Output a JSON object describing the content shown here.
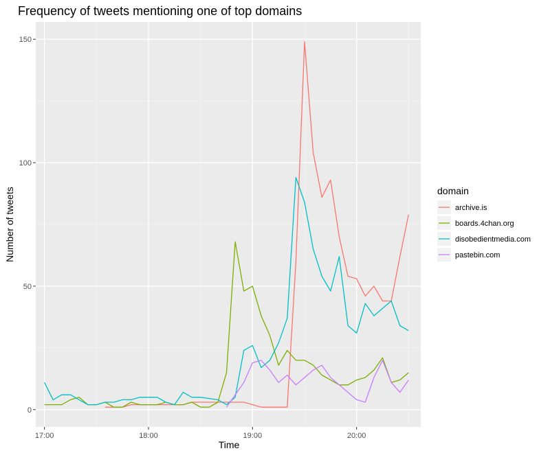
{
  "chart_data": {
    "type": "line",
    "title": "Frequency of tweets mentioning one of top domains",
    "xlabel": "Time",
    "ylabel": "Number of tweets",
    "x_ticks": [
      {
        "label": "17:00",
        "value": 0
      },
      {
        "label": "18:00",
        "value": 60
      },
      {
        "label": "19:00",
        "value": 120
      },
      {
        "label": "20:00",
        "value": 180
      }
    ],
    "y_ticks": [
      0,
      50,
      100,
      150
    ],
    "xlim": [
      -5,
      217
    ],
    "ylim": [
      -7,
      157
    ],
    "grid": true,
    "background": "#ebebeb",
    "legend": {
      "title": "domain",
      "placement": "right"
    },
    "series": [
      {
        "name": "archive.is",
        "color": "#f8766d",
        "x": [
          35,
          40,
          45,
          50,
          55,
          60,
          65,
          70,
          75,
          80,
          85,
          90,
          95,
          100,
          105,
          110,
          115,
          120,
          125,
          130,
          135,
          140,
          145,
          150,
          155,
          160,
          165,
          170,
          175,
          180,
          185,
          190,
          195,
          200,
          205,
          210
        ],
        "y": [
          1,
          1,
          1,
          2,
          2,
          2,
          2,
          2,
          2,
          2,
          3,
          3,
          3,
          3,
          3,
          3,
          3,
          2,
          1,
          1,
          1,
          1,
          60,
          149,
          104,
          86,
          93,
          70,
          54,
          53,
          46,
          50,
          44,
          44,
          62,
          79
        ]
      },
      {
        "name": "boards.4chan.org",
        "color": "#7cae00",
        "x": [
          0,
          5,
          10,
          15,
          20,
          25,
          30,
          35,
          40,
          45,
          50,
          55,
          60,
          65,
          70,
          75,
          80,
          85,
          90,
          95,
          100,
          105,
          110,
          115,
          120,
          125,
          130,
          135,
          140,
          145,
          150,
          155,
          160,
          165,
          170,
          175,
          180,
          185,
          190,
          195,
          200,
          205,
          210
        ],
        "y": [
          2,
          2,
          2,
          4,
          5,
          2,
          2,
          3,
          1,
          1,
          3,
          2,
          2,
          2,
          3,
          2,
          2,
          3,
          1,
          1,
          3,
          15,
          68,
          48,
          50,
          38,
          30,
          18,
          24,
          20,
          20,
          18,
          14,
          12,
          10,
          10,
          12,
          13,
          16,
          21,
          11,
          12,
          15
        ]
      },
      {
        "name": "disobedientmedia.com",
        "color": "#00bfc4",
        "x": [
          0,
          5,
          10,
          15,
          20,
          25,
          30,
          35,
          40,
          45,
          50,
          55,
          60,
          65,
          70,
          75,
          80,
          85,
          90,
          95,
          100,
          105,
          110,
          115,
          120,
          125,
          130,
          135,
          140,
          145,
          150,
          155,
          160,
          165,
          170,
          175,
          180,
          185,
          190,
          195,
          200,
          205,
          210
        ],
        "y": [
          11,
          4,
          6,
          6,
          4,
          2,
          2,
          3,
          3,
          4,
          4,
          5,
          5,
          5,
          3,
          2,
          7,
          5,
          5,
          4.5,
          4,
          2,
          5,
          24,
          26,
          17,
          20,
          27,
          37,
          94,
          84,
          65,
          54,
          48,
          62,
          34,
          31,
          43,
          38,
          41,
          44,
          34,
          32
        ]
      },
      {
        "name": "pastebin.com",
        "color": "#c77cff",
        "x": [
          105,
          110,
          115,
          120,
          125,
          130,
          135,
          140,
          145,
          150,
          155,
          160,
          165,
          170,
          175,
          180,
          185,
          190,
          195,
          200,
          205,
          210
        ],
        "y": [
          1,
          6,
          11,
          19,
          20,
          16,
          11,
          14,
          10,
          13,
          16,
          18,
          13,
          10,
          7,
          4,
          3,
          13,
          20,
          11,
          7,
          12
        ]
      }
    ]
  }
}
